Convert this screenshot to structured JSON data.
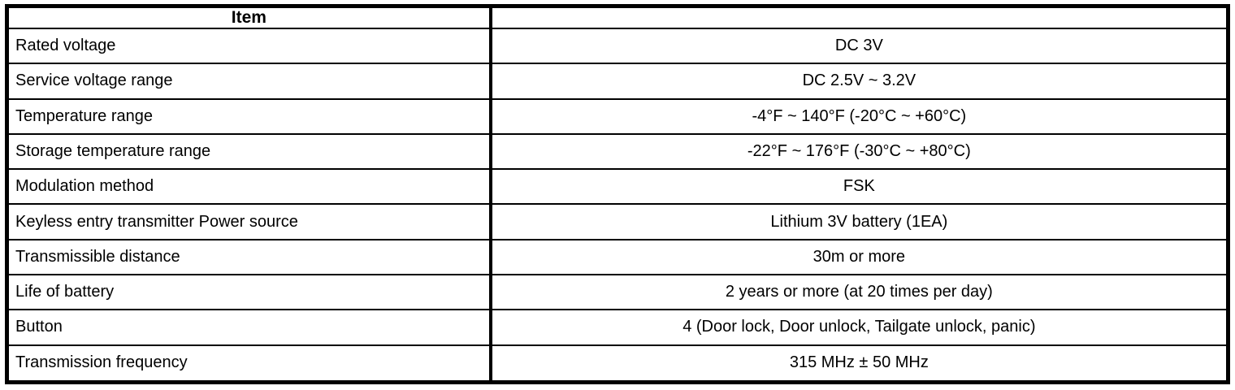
{
  "colors": {
    "border": "#000000",
    "background": "#ffffff",
    "text": "#000000"
  },
  "table": {
    "header": {
      "item": "Item",
      "value": ""
    },
    "rows": [
      {
        "item": "Rated voltage",
        "value": "DC 3V"
      },
      {
        "item": "Service voltage range",
        "value": "DC 2.5V ~ 3.2V"
      },
      {
        "item": "Temperature range",
        "value": "-4°F ~ 140°F (-20°C ~ +60°C)"
      },
      {
        "item": "Storage temperature range",
        "value": "-22°F ~ 176°F (-30°C ~ +80°C)"
      },
      {
        "item": "Modulation method",
        "value": "FSK"
      },
      {
        "item": "Keyless entry transmitter Power source",
        "value": "Lithium 3V battery (1EA)"
      },
      {
        "item": "Transmissible distance",
        "value": "30m or more"
      },
      {
        "item": "Life of battery",
        "value": "2 years or more (at 20 times per day)"
      },
      {
        "item": "Button",
        "value": "4 (Door lock, Door unlock, Tailgate unlock, panic)"
      },
      {
        "item": "Transmission frequency",
        "value": "315 MHz ± 50 MHz"
      }
    ]
  }
}
